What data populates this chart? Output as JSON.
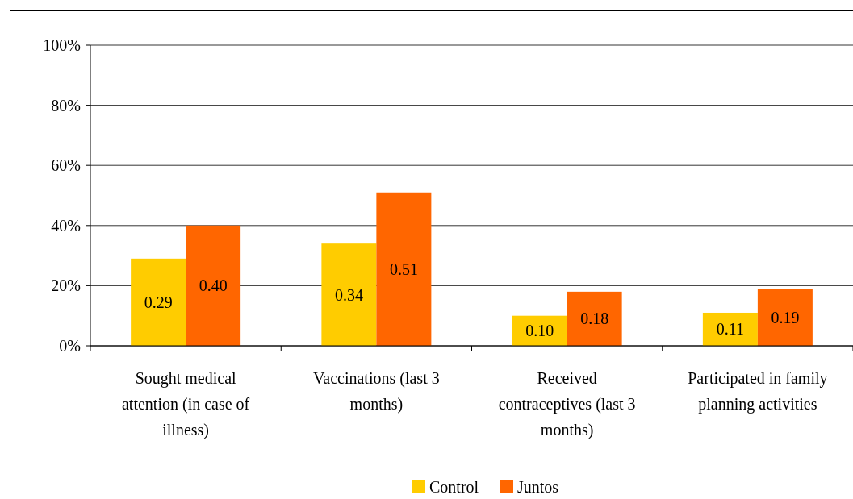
{
  "chart_data": {
    "type": "bar",
    "categories": [
      "Sought medical attention (in case of illness)",
      "Vaccinations (last 3 months)",
      "Received contraceptives (last 3 months)",
      "Participated in family planning activities"
    ],
    "series": [
      {
        "name": "Control",
        "color": "#ffcc00",
        "values": [
          0.29,
          0.34,
          0.1,
          0.11
        ],
        "value_labels": [
          "0.29",
          "0.34",
          "0.10",
          "0.11"
        ]
      },
      {
        "name": "Juntos",
        "color": "#ff6600",
        "values": [
          0.4,
          0.51,
          0.18,
          0.19
        ],
        "value_labels": [
          "0.40",
          "0.51",
          "0.18",
          "0.19"
        ]
      }
    ],
    "ylim": [
      0,
      1
    ],
    "yticks": [
      {
        "value": 0,
        "label": "0%"
      },
      {
        "value": 0.2,
        "label": "20%"
      },
      {
        "value": 0.4,
        "label": "40%"
      },
      {
        "value": 0.6,
        "label": "60%"
      },
      {
        "value": 0.8,
        "label": "80%"
      },
      {
        "value": 1,
        "label": "100%"
      }
    ],
    "grid": "y",
    "legend": "bottom"
  }
}
